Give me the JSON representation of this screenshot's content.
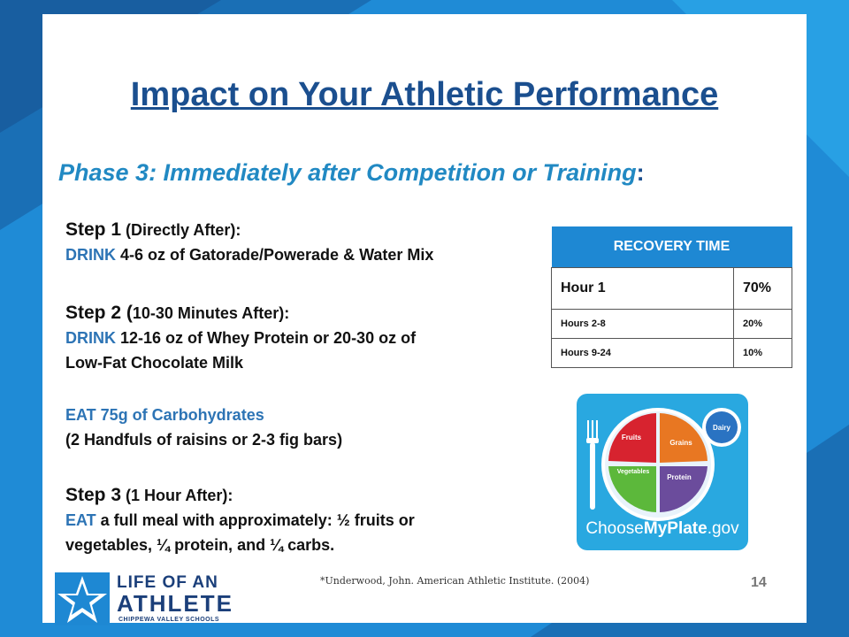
{
  "slide": {
    "title": "Impact on Your Athletic Performance",
    "subtitle": "Phase 3: Immediately after Competition or Training",
    "subtitle_colon": ":"
  },
  "steps": {
    "s1_heading": "Step 1",
    "s1_sub": " (Directly After):",
    "s1_verb": "DRINK",
    "s1_text": " 4-6 oz of Gatorade/Powerade & Water Mix",
    "s2_heading": "Step 2 (",
    "s2_sub": "10-30 Minutes After):",
    "s2_verb": "DRINK",
    "s2_text": " 12-16 oz of Whey Protein or 20-30 oz of",
    "s2_text2": "Low-Fat Chocolate Milk",
    "eat_line": "EAT 75g of Carbohydrates",
    "eat_sub": "(2 Handfuls of raisins or 2-3 fig bars)",
    "s3_heading": "Step 3",
    "s3_sub": " (1 Hour After):",
    "s3_verb": "EAT",
    "s3_text": " a full meal with approximately: ½ fruits or",
    "s3_text2": "vegetables, ¼  protein, and ¼ carbs."
  },
  "recovery_table": {
    "header": "RECOVERY TIME",
    "rows": [
      {
        "label": "Hour  1",
        "value": "70%"
      },
      {
        "label": "Hours 2-8",
        "value": "20%"
      },
      {
        "label": "Hours 9-24",
        "value": "10%"
      }
    ]
  },
  "myplate": {
    "fruits": "Fruits",
    "grains": "Grains",
    "vegetables": "Vegetables",
    "protein": "Protein",
    "dairy": "Dairy",
    "brand_a": "Choose",
    "brand_b": "MyPlate",
    "brand_c": ".gov",
    "colors": {
      "fruits": "#d7232f",
      "grains": "#e87722",
      "vegetables": "#5cb83b",
      "protein": "#6b4c9c",
      "dairy": "#2a73c2"
    }
  },
  "footer": {
    "citation": "*Underwood,  John. American Athletic Institute. (2004)",
    "page_number": "14",
    "logo_line1": "LIFE OF AN",
    "logo_line2": "ATHLETE",
    "logo_line3": "CHIPPEWA VALLEY SCHOOLS"
  },
  "colors": {
    "title": "#1b4f8f",
    "subtitle": "#2189c3",
    "accent_blue": "#2d74b5",
    "frame": "#1f8bd6"
  }
}
